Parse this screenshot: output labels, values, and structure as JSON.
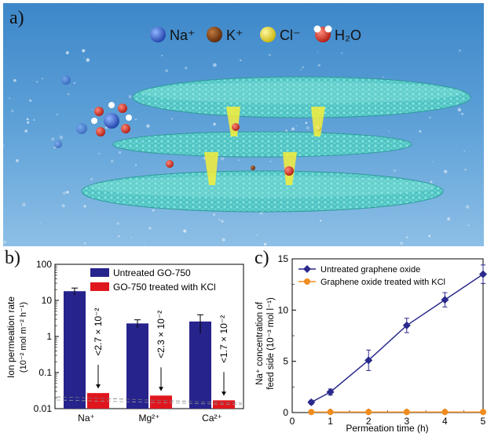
{
  "panel_a": {
    "letter": "a)",
    "legend": [
      {
        "label": "Na⁺",
        "color": "#2f5fd0",
        "icon": "blue-sphere-icon"
      },
      {
        "label": "K⁺",
        "color": "#7a3b12",
        "icon": "brown-sphere-icon"
      },
      {
        "label": "Cl⁻",
        "color": "#e6d21a",
        "icon": "yellow-sphere-icon"
      },
      {
        "label": "H₂O",
        "color": "#d8321f",
        "icon": "water-molecule-icon"
      }
    ]
  },
  "panel_b": {
    "letter": "b)",
    "ylabel": "Ion permeation rate",
    "yunits": "(10⁻² mol m⁻² h⁻¹)",
    "legend": [
      {
        "label": "Untreated GO-750",
        "color": "#27238c"
      },
      {
        "label": "GO-750 treated with KCl",
        "color": "#e0161e"
      }
    ]
  },
  "panel_c": {
    "letter": "c)",
    "ylabel_line1": "Na⁺ concentration of",
    "ylabel_line2": "feed side (10⁻³ mol l⁻¹)",
    "legend": [
      {
        "label": "Untreated graphene oxide",
        "color": "#2a2a8c"
      },
      {
        "label": "Graphene oxide treated with KCl",
        "color": "#f08c1e"
      }
    ]
  },
  "chart_data": [
    {
      "type": "bar",
      "scale": "log",
      "categories": [
        "Na⁺",
        "Mg²⁺",
        "Ca²⁺"
      ],
      "ylim": [
        0.01,
        100
      ],
      "yticks": [
        "0.01",
        "0.1",
        "1",
        "10",
        "100"
      ],
      "ylabel": "Ion permeation rate (10⁻² mol m⁻² h⁻¹)",
      "series": [
        {
          "name": "Untreated GO-750",
          "color": "#27238c",
          "values": [
            18,
            2.3,
            2.6
          ],
          "errors": [
            4,
            0.6,
            1.4
          ]
        },
        {
          "name": "GO-750 treated with KCl",
          "color": "#e0161e",
          "values": [
            0.027,
            0.023,
            0.017
          ]
        }
      ],
      "annotations": [
        "<2.7 × 10⁻²",
        "<2.3 × 10⁻²",
        "<1.7 × 10⁻²"
      ],
      "legend_position": "top-right"
    },
    {
      "type": "line",
      "x": [
        0.5,
        1,
        2,
        3,
        4,
        5
      ],
      "xlim": [
        0,
        5
      ],
      "ylim": [
        0,
        15
      ],
      "xticks": [
        "0",
        "1",
        "2",
        "3",
        "4",
        "5"
      ],
      "yticks": [
        "0",
        "5",
        "10",
        "15"
      ],
      "xlabel": "Permeation time (h)",
      "ylabel": "Na⁺ concentration of feed side (10⁻³ mol l⁻¹)",
      "series": [
        {
          "name": "Untreated graphene oxide",
          "color": "#2a2a8c",
          "marker": "diamond",
          "values": [
            1.0,
            2.0,
            5.1,
            8.5,
            11.0,
            13.5
          ],
          "errors": [
            0.2,
            0.3,
            1.0,
            0.7,
            0.7,
            0.9
          ]
        },
        {
          "name": "Graphene oxide treated with KCl",
          "color": "#f08c1e",
          "marker": "circle",
          "values": [
            0.05,
            0.05,
            0.05,
            0.05,
            0.05,
            0.05
          ]
        }
      ],
      "legend_position": "top-left"
    }
  ]
}
